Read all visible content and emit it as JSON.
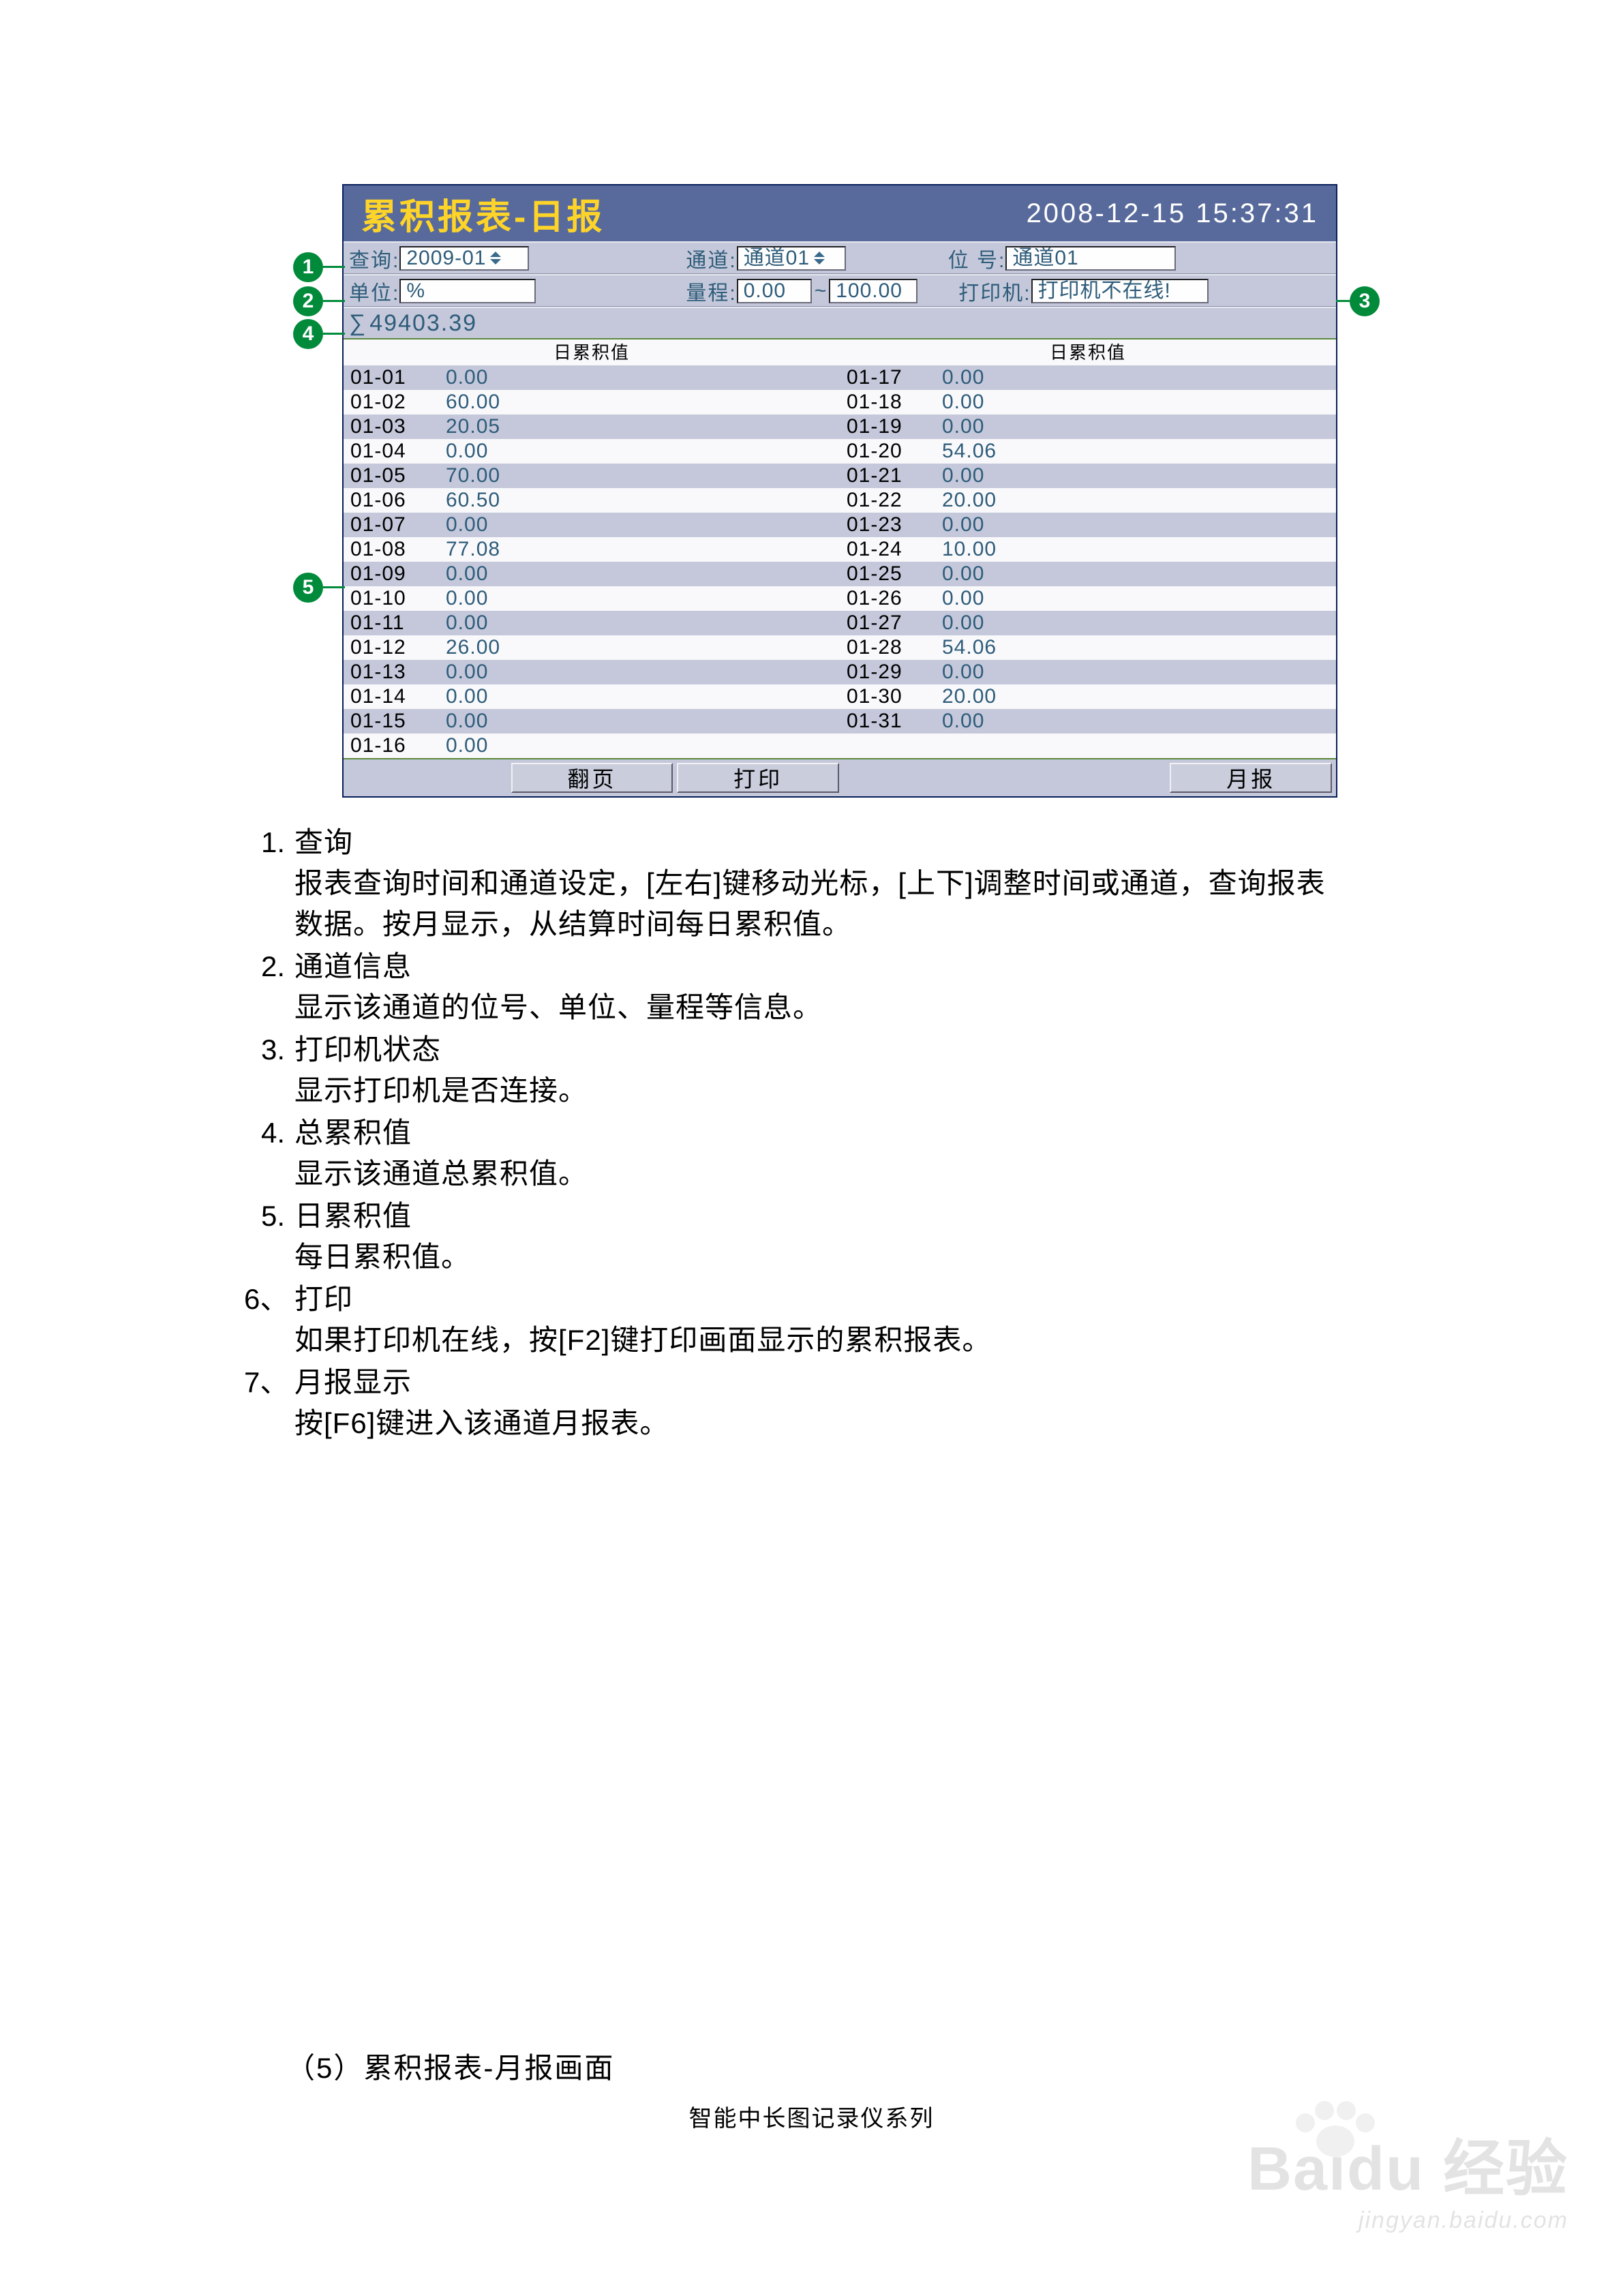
{
  "colors": {
    "titlebar_bg": "#586a9c",
    "title_fg": "#ffd429",
    "timestamp_fg": "#ffffff",
    "panel_bg": "#c4c8da",
    "panel_alt_bg": "#f9f9fb",
    "value_fg": "#2e5c7a",
    "marker_bg": "#008a3a",
    "accent_green": "#5b8a3a"
  },
  "titlebar": {
    "title": "累积报表-日报",
    "timestamp": "2008-12-15  15:37:31"
  },
  "info": {
    "query_label": "查询:",
    "query_value": "2009-01",
    "channel_label": "通道:",
    "channel_value": "通道01",
    "tag_label": "位 号:",
    "tag_value": "通道01",
    "unit_label": "单位:",
    "unit_value": "%",
    "range_label": "量程:",
    "range_lo": "0.00",
    "range_hi": "100.00",
    "printer_label": "打印机:",
    "printer_value": "打印机不在线!"
  },
  "sum": {
    "label": "∑",
    "value": "49403.39"
  },
  "col_header": "日累积值",
  "table_left": [
    {
      "d": "01-01",
      "v": "0.00"
    },
    {
      "d": "01-02",
      "v": "60.00"
    },
    {
      "d": "01-03",
      "v": "20.05"
    },
    {
      "d": "01-04",
      "v": "0.00"
    },
    {
      "d": "01-05",
      "v": "70.00"
    },
    {
      "d": "01-06",
      "v": "60.50"
    },
    {
      "d": "01-07",
      "v": "0.00"
    },
    {
      "d": "01-08",
      "v": "77.08"
    },
    {
      "d": "01-09",
      "v": "0.00"
    },
    {
      "d": "01-10",
      "v": "0.00"
    },
    {
      "d": "01-11",
      "v": "0.00"
    },
    {
      "d": "01-12",
      "v": "26.00"
    },
    {
      "d": "01-13",
      "v": "0.00"
    },
    {
      "d": "01-14",
      "v": "0.00"
    },
    {
      "d": "01-15",
      "v": "0.00"
    },
    {
      "d": "01-16",
      "v": "0.00"
    }
  ],
  "table_right": [
    {
      "d": "01-17",
      "v": "0.00"
    },
    {
      "d": "01-18",
      "v": "0.00"
    },
    {
      "d": "01-19",
      "v": "0.00"
    },
    {
      "d": "01-20",
      "v": "54.06"
    },
    {
      "d": "01-21",
      "v": "0.00"
    },
    {
      "d": "01-22",
      "v": "20.00"
    },
    {
      "d": "01-23",
      "v": "0.00"
    },
    {
      "d": "01-24",
      "v": "10.00"
    },
    {
      "d": "01-25",
      "v": "0.00"
    },
    {
      "d": "01-26",
      "v": "0.00"
    },
    {
      "d": "01-27",
      "v": "0.00"
    },
    {
      "d": "01-28",
      "v": "54.06"
    },
    {
      "d": "01-29",
      "v": "0.00"
    },
    {
      "d": "01-30",
      "v": "20.00"
    },
    {
      "d": "01-31",
      "v": "0.00"
    },
    {
      "d": "",
      "v": ""
    }
  ],
  "buttons": {
    "page": "翻页",
    "print": "打印",
    "month": "月报"
  },
  "markers": [
    "1",
    "2",
    "3",
    "4",
    "5"
  ],
  "explain": [
    {
      "n": "1.",
      "h": "查询",
      "d": "报表查询时间和通道设定，[左右]键移动光标，[上下]调整时间或通道，查询报表数据。按月显示，从结算时间每日累积值。"
    },
    {
      "n": "2.",
      "h": "通道信息",
      "d": "显示该通道的位号、单位、量程等信息。"
    },
    {
      "n": "3.",
      "h": "打印机状态",
      "d": "显示打印机是否连接。"
    },
    {
      "n": "4.",
      "h": "总累积值",
      "d": "显示该通道总累积值。"
    },
    {
      "n": "5.",
      "h": "日累积值",
      "d": "每日累积值。"
    },
    {
      "n": "6、",
      "h": "打印",
      "d": "如果打印机在线，按[F2]键打印画面显示的累积报表。"
    },
    {
      "n": "7、",
      "h": "月报显示",
      "d": "按[F6]键进入该通道月报表。"
    }
  ],
  "section_heading": "（5）累积报表-月报画面",
  "footer": "智能中长图记录仪系列",
  "watermark": {
    "big": "Baidu 经验",
    "sm": "jingyan.baidu.com"
  }
}
